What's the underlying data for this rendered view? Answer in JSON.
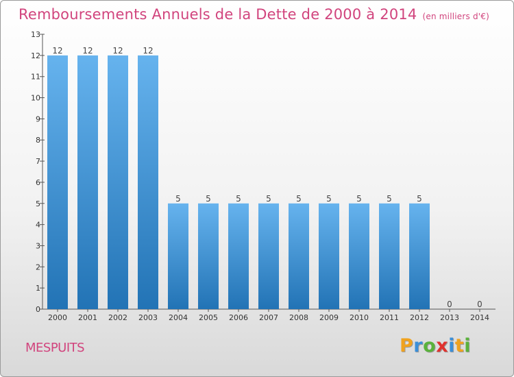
{
  "title": "Remboursements Annuels de la Dette de 2000 à 2014",
  "unit": "(en milliers d'€)",
  "commune": "MESPUITS",
  "logo": {
    "letters": [
      "P",
      "r",
      "o",
      "x",
      "i",
      "t",
      "i"
    ],
    "colors": [
      "#f0a21e",
      "#3b8fd9",
      "#5ab23c",
      "#e0322e",
      "#3b8fd9",
      "#f0a21e",
      "#5ab23c"
    ]
  },
  "colors": {
    "title": "#d1447d",
    "bar_top": "#66b3ee",
    "bar_bottom": "#2273b5"
  },
  "chart_data": {
    "type": "bar",
    "title": "Remboursements Annuels de la Dette de 2000 à 2014",
    "subtitle": "(en milliers d'€)",
    "categories": [
      "2000",
      "2001",
      "2002",
      "2003",
      "2004",
      "2005",
      "2006",
      "2007",
      "2008",
      "2009",
      "2010",
      "2011",
      "2012",
      "2013",
      "2014"
    ],
    "values": [
      12,
      12,
      12,
      12,
      5,
      5,
      5,
      5,
      5,
      5,
      5,
      5,
      5,
      0,
      0
    ],
    "value_labels": [
      "12",
      "12",
      "12",
      "12",
      "5",
      "5",
      "5",
      "5",
      "5",
      "5",
      "5",
      "5",
      "5",
      "0",
      "0"
    ],
    "yticks": [
      "0",
      "1",
      "2",
      "3",
      "4",
      "5",
      "6",
      "7",
      "8",
      "9",
      "10",
      "11",
      "12",
      "13"
    ],
    "ylim": [
      0,
      13
    ],
    "xlabel": "",
    "ylabel": "",
    "grid": false,
    "legend": "none"
  }
}
